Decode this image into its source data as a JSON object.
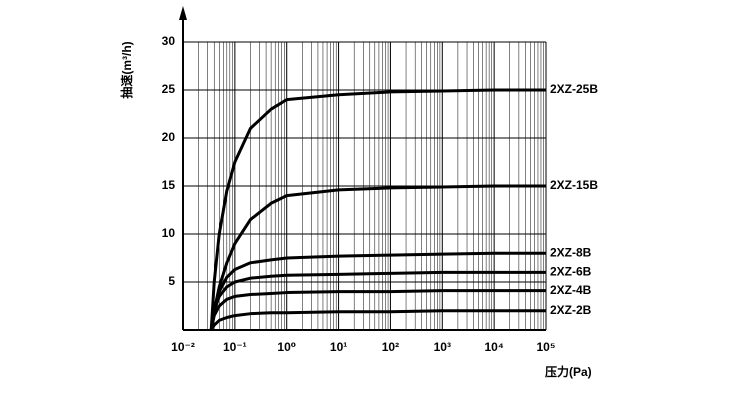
{
  "chart_data": {
    "type": "line",
    "xlabel": "压力(Pa)",
    "ylabel": "抽速(m³/h)",
    "x": [
      0.035,
      0.04,
      0.05,
      0.07,
      0.1,
      0.2,
      0.5,
      1,
      10,
      100,
      1000,
      10000,
      100000
    ],
    "series": [
      {
        "name": "2XZ-25B",
        "color": "#000000",
        "values": [
          0,
          5,
          10,
          14.5,
          17.5,
          21,
          23,
          24,
          24.5,
          24.8,
          24.9,
          25,
          25
        ]
      },
      {
        "name": "2XZ-15B",
        "color": "#000000",
        "values": [
          0,
          2,
          4.5,
          7,
          9,
          11.5,
          13.2,
          14,
          14.6,
          14.8,
          14.9,
          15,
          15
        ]
      },
      {
        "name": "2XZ-8B",
        "color": "#000000",
        "values": [
          0,
          2,
          4,
          5.5,
          6.3,
          7,
          7.3,
          7.5,
          7.7,
          7.8,
          7.9,
          8,
          8
        ]
      },
      {
        "name": "2XZ-6B",
        "color": "#000000",
        "values": [
          0,
          2,
          3.5,
          4.5,
          5,
          5.4,
          5.6,
          5.7,
          5.8,
          5.9,
          6,
          6,
          6
        ]
      },
      {
        "name": "2XZ-4B",
        "color": "#000000",
        "values": [
          0,
          1.5,
          2.5,
          3.2,
          3.5,
          3.7,
          3.8,
          3.9,
          4,
          4,
          4.1,
          4.1,
          4.1
        ]
      },
      {
        "name": "2XZ-2B",
        "color": "#000000",
        "values": [
          0,
          0.5,
          1,
          1.3,
          1.5,
          1.7,
          1.8,
          1.8,
          1.9,
          1.9,
          2,
          2,
          2
        ]
      }
    ],
    "xscale": "log",
    "xlim": [
      0.01,
      100000
    ],
    "xticks": [
      {
        "value": 0.01,
        "label": "10⁻²"
      },
      {
        "value": 0.1,
        "label": "10⁻¹"
      },
      {
        "value": 1,
        "label": "10⁰"
      },
      {
        "value": 10,
        "label": "10¹"
      },
      {
        "value": 100,
        "label": "10²"
      },
      {
        "value": 1000,
        "label": "10³"
      },
      {
        "value": 10000,
        "label": "10⁴"
      },
      {
        "value": 100000,
        "label": "10⁵"
      }
    ],
    "ylim": [
      0,
      30
    ],
    "yticks": [
      5,
      10,
      15,
      20,
      25,
      30
    ],
    "grid": true
  }
}
